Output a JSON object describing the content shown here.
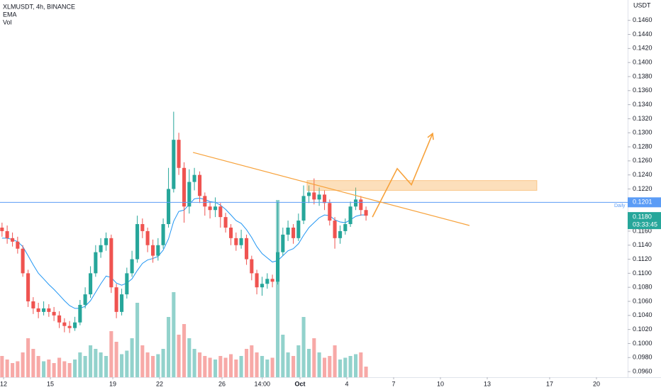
{
  "chart_data": {
    "type": "candlestick",
    "title": "XLMUSDT, 4h, BINANCE",
    "indicators": [
      "EMA",
      "Vol"
    ],
    "y_unit": "USDT",
    "up_color": "#26a69a",
    "down_color": "#ef5350",
    "ema_color": "#2196f3",
    "drawing_color": "#f7a23b",
    "xlim": [
      -0.23,
      40
    ],
    "ylim": [
      0.0952,
      0.1489
    ],
    "volume_lim": [
      0,
      100
    ],
    "xticks": [
      {
        "value": 0,
        "label": "12"
      },
      {
        "value": 3,
        "label": "15"
      },
      {
        "value": 7,
        "label": "19"
      },
      {
        "value": 10,
        "label": "22"
      },
      {
        "value": 14,
        "label": "26"
      },
      {
        "value": 16.58,
        "label": "14:00"
      },
      {
        "value": 19,
        "label": "Oct"
      },
      {
        "value": 22,
        "label": "4"
      },
      {
        "value": 25,
        "label": "7"
      },
      {
        "value": 28,
        "label": "10"
      },
      {
        "value": 31,
        "label": "13"
      },
      {
        "value": 35,
        "label": "17"
      },
      {
        "value": 38,
        "label": "20"
      }
    ],
    "yticks": [
      {
        "value": 0.146,
        "label": "0.1460"
      },
      {
        "value": 0.144,
        "label": "0.1440"
      },
      {
        "value": 0.142,
        "label": "0.1420"
      },
      {
        "value": 0.14,
        "label": "0.1400"
      },
      {
        "value": 0.138,
        "label": "0.1380"
      },
      {
        "value": 0.136,
        "label": "0.1360"
      },
      {
        "value": 0.134,
        "label": "0.1340"
      },
      {
        "value": 0.132,
        "label": "0.1320"
      },
      {
        "value": 0.13,
        "label": "0.1300"
      },
      {
        "value": 0.128,
        "label": "0.1280"
      },
      {
        "value": 0.126,
        "label": "0.1260"
      },
      {
        "value": 0.124,
        "label": "0.1240"
      },
      {
        "value": 0.122,
        "label": "0.1220"
      },
      {
        "value": 0.12,
        "label": "0.1200"
      },
      {
        "value": 0.118,
        "label": "0.1180"
      },
      {
        "value": 0.116,
        "label": "0.1160"
      },
      {
        "value": 0.114,
        "label": "0.1140"
      },
      {
        "value": 0.112,
        "label": "0.1120"
      },
      {
        "value": 0.11,
        "label": "0.1100"
      },
      {
        "value": 0.108,
        "label": "0.1080"
      },
      {
        "value": 0.106,
        "label": "0.1060"
      },
      {
        "value": 0.104,
        "label": "0.1040"
      },
      {
        "value": 0.102,
        "label": "0.1020"
      },
      {
        "value": 0.1,
        "label": "0.1000"
      },
      {
        "value": 0.098,
        "label": "0.0980"
      },
      {
        "value": 0.096,
        "label": "0.0960"
      }
    ],
    "x": [
      -0.1,
      0.23,
      0.57,
      0.9,
      1.23,
      1.57,
      1.9,
      2.23,
      2.57,
      2.9,
      3.23,
      3.57,
      3.9,
      4.23,
      4.57,
      4.9,
      5.23,
      5.57,
      5.9,
      6.23,
      6.57,
      6.9,
      7.23,
      7.57,
      7.9,
      8.23,
      8.57,
      8.9,
      9.23,
      9.57,
      9.9,
      10.23,
      10.57,
      10.9,
      11.23,
      11.57,
      11.9,
      12.23,
      12.57,
      12.9,
      13.23,
      13.57,
      13.9,
      14.23,
      14.57,
      14.9,
      15.23,
      15.57,
      15.9,
      16.23,
      16.57,
      16.9,
      17.23,
      17.57,
      17.9,
      18.23,
      18.57,
      18.9,
      19.23,
      19.57,
      19.9,
      20.23,
      20.57,
      20.9,
      21.23,
      21.57,
      21.9,
      22.23,
      22.57,
      22.9,
      23.23
    ],
    "open": [
      0.1165,
      0.116,
      0.115,
      0.1145,
      0.1135,
      0.11,
      0.106,
      0.105,
      0.1045,
      0.105,
      0.1045,
      0.104,
      0.103,
      0.1025,
      0.1022,
      0.103,
      0.1055,
      0.107,
      0.11,
      0.113,
      0.114,
      0.115,
      0.108,
      0.1045,
      0.107,
      0.11,
      0.112,
      0.117,
      0.116,
      0.114,
      0.1125,
      0.114,
      0.117,
      0.122,
      0.129,
      0.125,
      0.1195,
      0.123,
      0.124,
      0.121,
      0.1195,
      0.119,
      0.1195,
      0.118,
      0.1165,
      0.115,
      0.114,
      0.115,
      0.112,
      0.11,
      0.108,
      0.1085,
      0.1092,
      0.1088,
      0.113,
      0.1155,
      0.1165,
      0.115,
      0.1175,
      0.121,
      0.1215,
      0.1205,
      0.1212,
      0.12,
      0.1175,
      0.115,
      0.116,
      0.117,
      0.1195,
      0.1205,
      0.119
    ],
    "high": [
      0.1172,
      0.1168,
      0.1158,
      0.1152,
      0.114,
      0.1105,
      0.1066,
      0.1058,
      0.106,
      0.1056,
      0.1052,
      0.1046,
      0.1036,
      0.1032,
      0.1038,
      0.1062,
      0.108,
      0.111,
      0.114,
      0.115,
      0.1158,
      0.1155,
      0.1085,
      0.1078,
      0.1108,
      0.1132,
      0.1182,
      0.1178,
      0.1165,
      0.1148,
      0.115,
      0.1178,
      0.125,
      0.133,
      0.13,
      0.1258,
      0.1248,
      0.125,
      0.1245,
      0.1215,
      0.1202,
      0.1208,
      0.12,
      0.1186,
      0.117,
      0.1158,
      0.1162,
      0.1155,
      0.1125,
      0.1105,
      0.1095,
      0.11,
      0.1098,
      0.1202,
      0.1165,
      0.1175,
      0.117,
      0.1185,
      0.1225,
      0.1225,
      0.1235,
      0.1222,
      0.1218,
      0.1205,
      0.118,
      0.1168,
      0.1178,
      0.1202,
      0.1222,
      0.121,
      0.1195
    ],
    "low": [
      0.1152,
      0.1142,
      0.1138,
      0.1128,
      0.1095,
      0.1052,
      0.1042,
      0.1036,
      0.104,
      0.1038,
      0.1032,
      0.1022,
      0.1016,
      0.1015,
      0.1018,
      0.1026,
      0.105,
      0.1065,
      0.1095,
      0.1122,
      0.1132,
      0.1072,
      0.1036,
      0.104,
      0.1064,
      0.1095,
      0.1115,
      0.115,
      0.113,
      0.1115,
      0.1118,
      0.1135,
      0.1165,
      0.1215,
      0.124,
      0.1172,
      0.1185,
      0.1218,
      0.12,
      0.1182,
      0.1178,
      0.118,
      0.1165,
      0.1158,
      0.114,
      0.1132,
      0.1135,
      0.1112,
      0.109,
      0.107,
      0.1068,
      0.1078,
      0.108,
      0.1084,
      0.1125,
      0.1146,
      0.1142,
      0.1146,
      0.117,
      0.12,
      0.1198,
      0.1196,
      0.119,
      0.1168,
      0.1135,
      0.1142,
      0.1155,
      0.1166,
      0.119,
      0.1182,
      0.1175
    ],
    "close": [
      0.116,
      0.115,
      0.1145,
      0.1135,
      0.11,
      0.106,
      0.105,
      0.1045,
      0.105,
      0.1045,
      0.104,
      0.103,
      0.1025,
      0.1022,
      0.103,
      0.1055,
      0.107,
      0.11,
      0.113,
      0.114,
      0.115,
      0.108,
      0.1045,
      0.107,
      0.11,
      0.112,
      0.117,
      0.116,
      0.114,
      0.1125,
      0.114,
      0.117,
      0.122,
      0.129,
      0.125,
      0.1195,
      0.123,
      0.124,
      0.121,
      0.1195,
      0.119,
      0.1195,
      0.118,
      0.1165,
      0.115,
      0.114,
      0.115,
      0.112,
      0.11,
      0.108,
      0.1085,
      0.1092,
      0.1088,
      0.113,
      0.1155,
      0.1165,
      0.115,
      0.1175,
      0.121,
      0.1215,
      0.1205,
      0.1212,
      0.12,
      0.1175,
      0.115,
      0.116,
      0.117,
      0.1195,
      0.1205,
      0.119,
      0.1182
    ],
    "volume": [
      12,
      10,
      8,
      9,
      14,
      22,
      16,
      12,
      9,
      10,
      8,
      11,
      9,
      8,
      10,
      14,
      12,
      18,
      16,
      14,
      12,
      26,
      20,
      13,
      15,
      22,
      42,
      18,
      14,
      12,
      13,
      16,
      34,
      48,
      24,
      30,
      22,
      16,
      14,
      12,
      11,
      10,
      12,
      11,
      13,
      10,
      12,
      16,
      18,
      14,
      12,
      10,
      11,
      100,
      24,
      14,
      12,
      18,
      34,
      16,
      22,
      14,
      11,
      12,
      18,
      10,
      11,
      12,
      13,
      14,
      6
    ],
    "ema": [
      0.115,
      0.115,
      0.1148,
      0.1145,
      0.1138,
      0.1125,
      0.1112,
      0.11,
      0.1092,
      0.1084,
      0.1077,
      0.1069,
      0.1061,
      0.1054,
      0.105,
      0.105,
      0.1053,
      0.1061,
      0.1073,
      0.1085,
      0.1096,
      0.1094,
      0.1086,
      0.1083,
      0.1086,
      0.1092,
      0.1104,
      0.1114,
      0.1119,
      0.1121,
      0.1124,
      0.1133,
      0.1149,
      0.1174,
      0.1188,
      0.119,
      0.1198,
      0.1206,
      0.1207,
      0.1205,
      0.1202,
      0.1201,
      0.1197,
      0.1191,
      0.1183,
      0.1175,
      0.1171,
      0.1162,
      0.1151,
      0.1138,
      0.1128,
      0.1122,
      0.1116,
      0.1118,
      0.1125,
      0.1132,
      0.1135,
      0.1142,
      0.1154,
      0.1165,
      0.1172,
      0.1179,
      0.1183,
      0.1182,
      0.1176,
      0.1173,
      0.1172,
      0.1176,
      0.1181,
      0.1183,
      0.1183
    ],
    "price_line": {
      "value": 0.1201,
      "label": "0.1201",
      "name": "Daily",
      "color": "#5b9cf6"
    },
    "last_price": {
      "value": 0.118,
      "label": "0.1180",
      "countdown": "03:33:45"
    },
    "drawings": {
      "trendline": {
        "x": [
          12.14,
          29.86
        ],
        "y": [
          0.1272,
          0.1168
        ]
      },
      "zone": {
        "x": [
          19.45,
          34.18
        ],
        "y": [
          0.1218,
          0.1232
        ]
      },
      "arrow": {
        "x": [
          23.64,
          25.23,
          26.14,
          27.5
        ],
        "y": [
          0.118,
          0.1249,
          0.1226,
          0.1299
        ]
      }
    }
  }
}
